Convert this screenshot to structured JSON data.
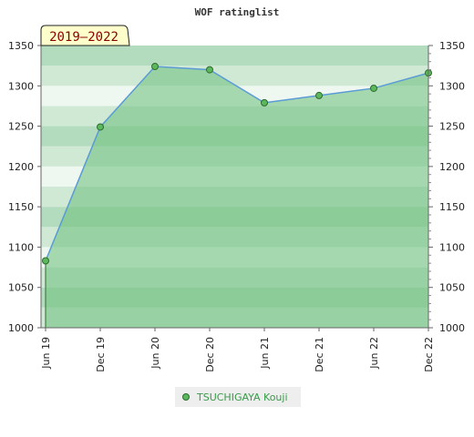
{
  "chart_data": {
    "type": "area",
    "title": "WOF ratinglist",
    "period_label": "2019–2022",
    "categories": [
      "Jun 19",
      "Dec 19",
      "Jun 20",
      "Dec 20",
      "Jun 21",
      "Dec 21",
      "Jun 22",
      "Dec 22"
    ],
    "series": [
      {
        "name": "TSUCHIGAYA Kouji",
        "values": [
          1083,
          1249,
          1324,
          1320,
          1279,
          1288,
          1297,
          1316
        ]
      }
    ],
    "ylim": [
      1000,
      1350
    ],
    "yticks": [
      1000,
      1050,
      1100,
      1150,
      1200,
      1250,
      1300,
      1350
    ],
    "ytick_labels": [
      "1000",
      "1050",
      "1100",
      "1150",
      "1200",
      "1250",
      "1300",
      "1350"
    ],
    "grid": "horizontal bands",
    "legend_position": "bottom-center",
    "colors": {
      "line": "#5b9bd5",
      "marker_fill": "#5cb85c",
      "marker_stroke": "#2e6b2e",
      "area_fill": "#6cbf7c",
      "band_light": "#eef7f0",
      "band_mid": "#cfe9d5",
      "band_dark": "#b3dbbd",
      "period_box_fill": "#ffffcc",
      "legend_box_fill": "#eeeeee"
    }
  }
}
